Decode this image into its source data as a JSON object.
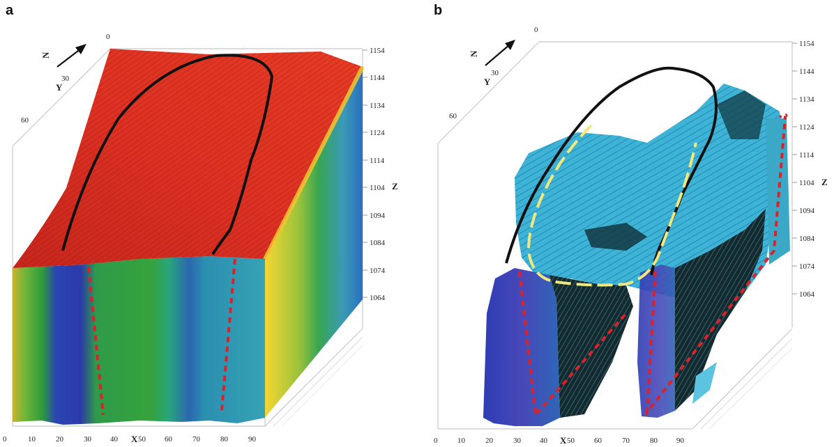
{
  "panels": [
    {
      "label": "a",
      "axes": {
        "x_name": "X",
        "y_name": "Y",
        "z_name": "Z",
        "x_ticks": [
          "0",
          "10",
          "20",
          "30",
          "40",
          "50",
          "60",
          "70",
          "80",
          "90"
        ],
        "y_ticks": [
          "0",
          "30",
          "60"
        ],
        "z_ticks": [
          "1154",
          "1144",
          "1134",
          "1124",
          "1114",
          "1104",
          "1094",
          "1084",
          "1074",
          "1064"
        ],
        "north_label": "N"
      }
    },
    {
      "label": "b",
      "axes": {
        "x_name": "X",
        "y_name": "Y",
        "z_name": "Z",
        "x_ticks": [
          "0",
          "10",
          "20",
          "30",
          "40",
          "50",
          "60",
          "70",
          "80",
          "90"
        ],
        "y_ticks": [
          "0",
          "30",
          "60"
        ],
        "z_ticks": [
          "1154",
          "1144",
          "1134",
          "1124",
          "1114",
          "1104",
          "1094",
          "1084",
          "1074",
          "1064"
        ],
        "north_label": "N"
      }
    }
  ],
  "colors": {
    "top_surface": "#d42a1e",
    "high_resistivity": "#1fa23a",
    "low_resistivity": "#2a3fae",
    "medium": "#2fa7b8",
    "isosurface": "#3cb4d6",
    "boundary_line": "#111111",
    "fault_line": "#d9232b",
    "inner_boundary": "#f0e68c"
  }
}
